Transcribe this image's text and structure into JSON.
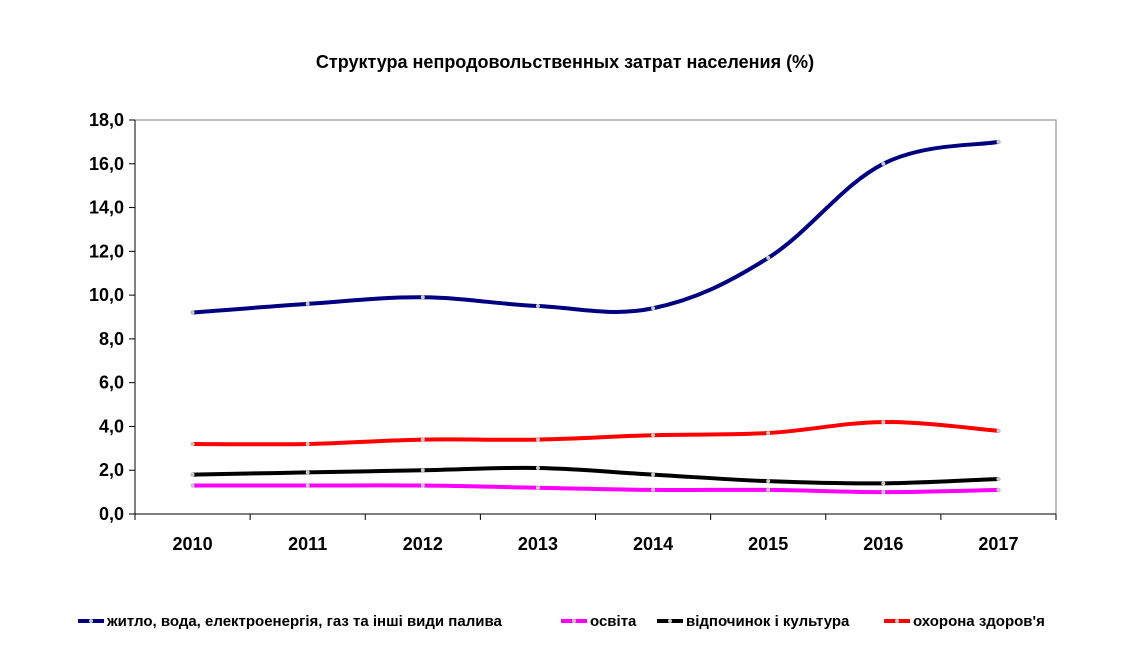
{
  "chart_data": {
    "type": "line",
    "title": "Структура непродовольственных затрат населения (%)",
    "categories": [
      "2010",
      "2011",
      "2012",
      "2013",
      "2014",
      "2015",
      "2016",
      "2017"
    ],
    "y_ticks": [
      "0,0",
      "2,0",
      "4,0",
      "6,0",
      "8,0",
      "10,0",
      "12,0",
      "14,0",
      "16,0",
      "18,0"
    ],
    "ylim": [
      0,
      18
    ],
    "grid": false,
    "legend_position": "bottom",
    "series": [
      {
        "name": "житло, вода, електроенергія, газ та інші види палива",
        "color": "#000080",
        "values": [
          9.2,
          9.6,
          9.9,
          9.5,
          9.4,
          11.7,
          16.0,
          17.0
        ]
      },
      {
        "name": "освіта",
        "color": "#ff00ff",
        "values": [
          1.3,
          1.3,
          1.3,
          1.2,
          1.1,
          1.1,
          1.0,
          1.1
        ]
      },
      {
        "name": "відпочинок і культура",
        "color": "#000000",
        "values": [
          1.8,
          1.9,
          2.0,
          2.1,
          1.8,
          1.5,
          1.4,
          1.6
        ]
      },
      {
        "name": "охорона здоров'я",
        "color": "#ff0000",
        "values": [
          3.2,
          3.2,
          3.4,
          3.4,
          3.6,
          3.7,
          4.2,
          3.8
        ]
      }
    ]
  }
}
